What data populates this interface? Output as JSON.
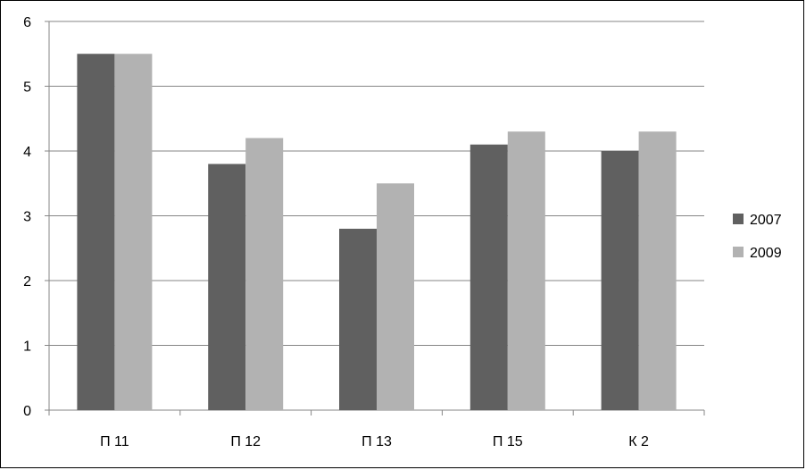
{
  "chart_data": {
    "type": "bar",
    "categories": [
      "П 11",
      "П 12",
      "П 13",
      "П 15",
      "К 2"
    ],
    "series": [
      {
        "name": "2007",
        "values": [
          5.5,
          3.8,
          2.8,
          4.1,
          4.0
        ],
        "color": "#606060"
      },
      {
        "name": "2009",
        "values": [
          5.5,
          4.2,
          3.5,
          4.3,
          4.3
        ],
        "color": "#b2b2b2"
      }
    ],
    "title": "",
    "xlabel": "",
    "ylabel": "",
    "ylim": [
      0,
      6
    ],
    "yticks": [
      0,
      1,
      2,
      3,
      4,
      5,
      6
    ],
    "grid": true,
    "legend_position": "right",
    "gridline_color": "#868686",
    "axis_color": "#868686"
  }
}
